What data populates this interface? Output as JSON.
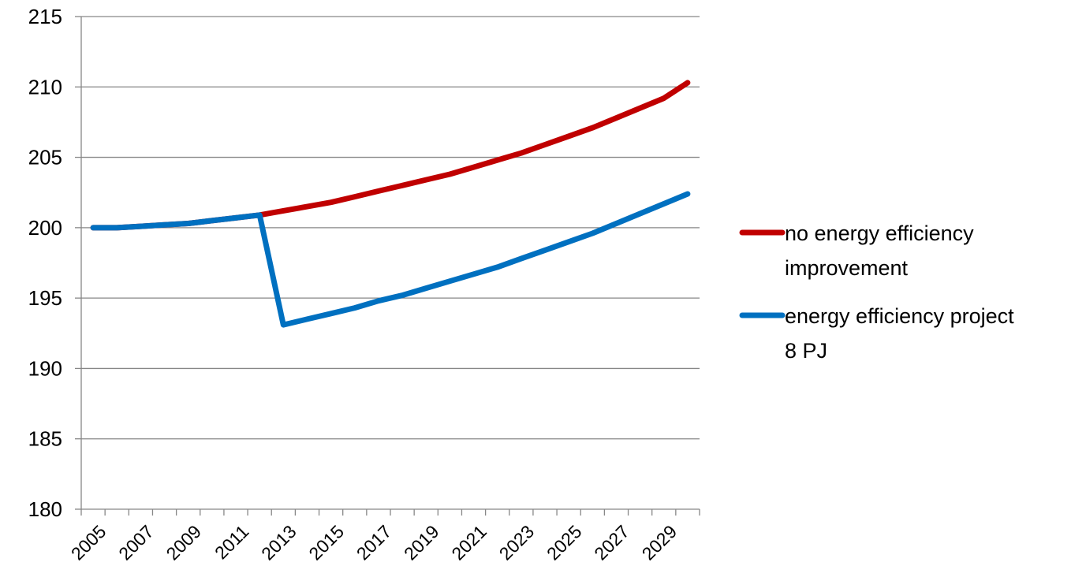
{
  "chart_data": {
    "type": "line",
    "title": "",
    "xlabel": "",
    "ylabel": "",
    "ylim": [
      180,
      215
    ],
    "y_ticks": [
      "180",
      "185",
      "190",
      "195",
      "200",
      "205",
      "210",
      "215"
    ],
    "x_tick_labels": [
      "2005",
      "2007",
      "2009",
      "2011",
      "2013",
      "2015",
      "2017",
      "2019",
      "2021",
      "2023",
      "2025",
      "2027",
      "2029"
    ],
    "grid": true,
    "legend_position": "right",
    "x": [
      2005,
      2006,
      2007,
      2008,
      2009,
      2010,
      2011,
      2012,
      2013,
      2014,
      2015,
      2016,
      2017,
      2018,
      2019,
      2020,
      2021,
      2022,
      2023,
      2024,
      2025,
      2026,
      2027,
      2028,
      2029,
      2030
    ],
    "series": [
      {
        "name": "no energy efficiency improvement",
        "color": "#c00000",
        "values": [
          200.0,
          200.0,
          200.1,
          200.2,
          200.3,
          200.5,
          200.7,
          200.9,
          201.2,
          201.5,
          201.8,
          202.2,
          202.6,
          203.0,
          203.4,
          203.8,
          204.3,
          204.8,
          205.3,
          205.9,
          206.5,
          207.1,
          207.8,
          208.5,
          209.2,
          210.3
        ]
      },
      {
        "name": "energy efficiency project 8 PJ",
        "color": "#0070c0",
        "values": [
          200.0,
          200.0,
          200.1,
          200.2,
          200.3,
          200.5,
          200.7,
          200.9,
          193.1,
          193.5,
          193.9,
          194.3,
          194.8,
          195.2,
          195.7,
          196.2,
          196.7,
          197.2,
          197.8,
          198.4,
          199.0,
          199.6,
          200.3,
          201.0,
          201.7,
          202.4
        ]
      }
    ]
  }
}
